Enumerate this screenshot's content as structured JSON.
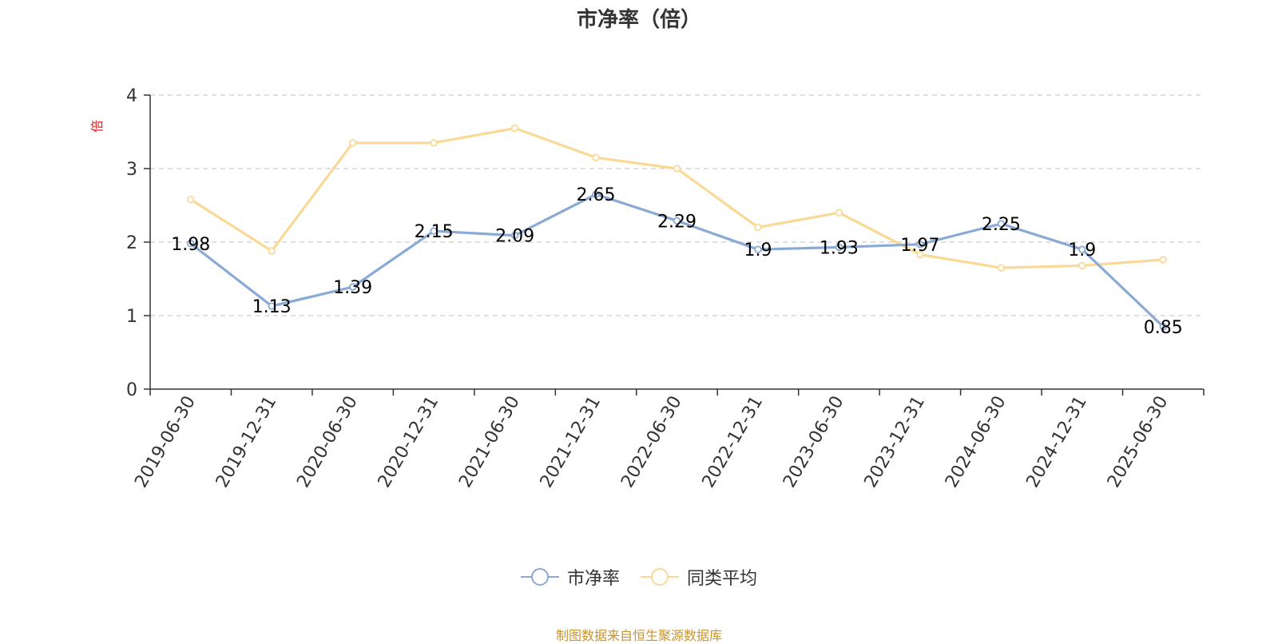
{
  "title": "市净率（倍）",
  "source": "制图数据来自恒生聚源数据库",
  "colors": {
    "series_pb": "#8aaad6",
    "series_avg": "#fad996",
    "y_unit": "#e31c1c",
    "source": "#c8952f",
    "grid": "#cccccc",
    "axis": "#333333",
    "text": "#333333"
  },
  "chart_data": {
    "type": "line",
    "title": "市净率（倍）",
    "ylabel": "倍",
    "xlabel": "",
    "ylim": [
      0,
      4
    ],
    "yticks": [
      0,
      1,
      2,
      3,
      4
    ],
    "grid": true,
    "legend_position": "bottom-center",
    "categories": [
      "2019-06-30",
      "2019-12-31",
      "2020-06-30",
      "2020-12-31",
      "2021-06-30",
      "2021-12-31",
      "2022-06-30",
      "2022-12-31",
      "2023-06-30",
      "2023-12-31",
      "2024-06-30",
      "2024-12-31",
      "2025-06-30"
    ],
    "series": [
      {
        "name": "市净率",
        "values": [
          1.98,
          1.13,
          1.39,
          2.15,
          2.09,
          2.65,
          2.29,
          1.9,
          1.93,
          1.97,
          2.25,
          1.9,
          0.85
        ],
        "data_labels": [
          "1.98",
          "1.13",
          "1.39",
          "2.15",
          "2.09",
          "2.65",
          "2.29",
          "1.9",
          "1.93",
          "1.97",
          "2.25",
          "1.9",
          "0.85"
        ]
      },
      {
        "name": "同类平均",
        "values": [
          2.58,
          1.88,
          3.35,
          3.35,
          3.55,
          3.15,
          3.0,
          2.2,
          2.4,
          1.83,
          1.65,
          1.68,
          1.76
        ]
      }
    ]
  }
}
